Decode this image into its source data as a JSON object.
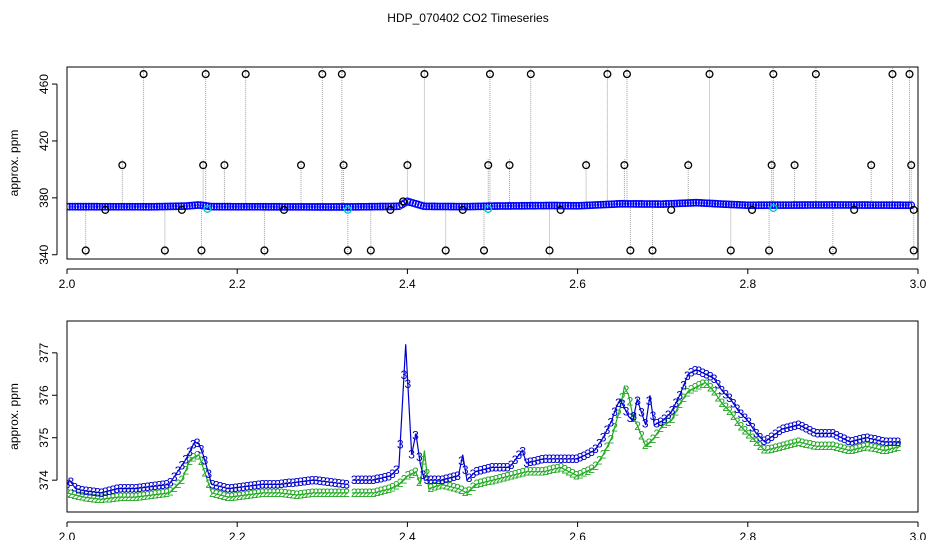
{
  "title": "HDP_070402  CO2 Timeseries",
  "colors": {
    "raw": "#000000",
    "trace": "#a0a0a0",
    "smoothed": "#0000ff",
    "flagged": "#00c8c8",
    "series2": "#22aa22",
    "series3": "#0000cc"
  },
  "chart_data": [
    {
      "type": "scatter",
      "ylabel": "approx. ppm",
      "xlim": [
        2.0,
        3.0
      ],
      "ylim": [
        337,
        472
      ],
      "x_ticks": [
        2.0,
        2.2,
        2.4,
        2.6,
        2.8,
        3.0
      ],
      "x_tick_labels": [
        "2.0",
        "2.2",
        "2.4",
        "2.6",
        "2.8",
        "3.0"
      ],
      "y_ticks": [
        340,
        380,
        420,
        460
      ],
      "y_tick_labels": [
        "340",
        "380",
        "420",
        "460"
      ],
      "baseline": [
        [
          2.0,
          373.8
        ],
        [
          2.1,
          373.7
        ],
        [
          2.14,
          374.2
        ],
        [
          2.155,
          375.0
        ],
        [
          2.17,
          373.8
        ],
        [
          2.3,
          373.6
        ],
        [
          2.33,
          373.6
        ],
        [
          2.39,
          374.0
        ],
        [
          2.4,
          377.5
        ],
        [
          2.42,
          374.0
        ],
        [
          2.47,
          373.8
        ],
        [
          2.5,
          374.2
        ],
        [
          2.57,
          374.6
        ],
        [
          2.6,
          374.4
        ],
        [
          2.65,
          375.8
        ],
        [
          2.7,
          375.6
        ],
        [
          2.74,
          376.6
        ],
        [
          2.77,
          375.6
        ],
        [
          2.8,
          374.8
        ],
        [
          2.9,
          375.0
        ],
        [
          2.99,
          374.8
        ]
      ],
      "flagged_x": [
        2.165,
        2.495,
        2.83,
        2.33
      ],
      "spikes": [
        {
          "x": 2.022,
          "y": 343
        },
        {
          "x": 2.065,
          "y": 403
        },
        {
          "x": 2.09,
          "y": 467
        },
        {
          "x": 2.115,
          "y": 343
        },
        {
          "x": 2.158,
          "y": 343
        },
        {
          "x": 2.16,
          "y": 403
        },
        {
          "x": 2.163,
          "y": 467
        },
        {
          "x": 2.185,
          "y": 403
        },
        {
          "x": 2.21,
          "y": 467
        },
        {
          "x": 2.232,
          "y": 343
        },
        {
          "x": 2.275,
          "y": 403
        },
        {
          "x": 2.3,
          "y": 467
        },
        {
          "x": 2.323,
          "y": 467
        },
        {
          "x": 2.325,
          "y": 403
        },
        {
          "x": 2.33,
          "y": 343
        },
        {
          "x": 2.357,
          "y": 343
        },
        {
          "x": 2.4,
          "y": 403
        },
        {
          "x": 2.42,
          "y": 467
        },
        {
          "x": 2.445,
          "y": 343
        },
        {
          "x": 2.49,
          "y": 343
        },
        {
          "x": 2.495,
          "y": 403
        },
        {
          "x": 2.497,
          "y": 467
        },
        {
          "x": 2.52,
          "y": 403
        },
        {
          "x": 2.545,
          "y": 467
        },
        {
          "x": 2.567,
          "y": 343
        },
        {
          "x": 2.61,
          "y": 403
        },
        {
          "x": 2.635,
          "y": 467
        },
        {
          "x": 2.655,
          "y": 403
        },
        {
          "x": 2.658,
          "y": 467
        },
        {
          "x": 2.662,
          "y": 343
        },
        {
          "x": 2.688,
          "y": 343
        },
        {
          "x": 2.73,
          "y": 403
        },
        {
          "x": 2.755,
          "y": 467
        },
        {
          "x": 2.78,
          "y": 343
        },
        {
          "x": 2.825,
          "y": 343
        },
        {
          "x": 2.828,
          "y": 403
        },
        {
          "x": 2.83,
          "y": 467
        },
        {
          "x": 2.855,
          "y": 403
        },
        {
          "x": 2.88,
          "y": 467
        },
        {
          "x": 2.9,
          "y": 343
        },
        {
          "x": 2.945,
          "y": 403
        },
        {
          "x": 2.97,
          "y": 467
        },
        {
          "x": 2.99,
          "y": 467
        },
        {
          "x": 2.992,
          "y": 403
        },
        {
          "x": 2.995,
          "y": 343
        }
      ],
      "low_points": [
        {
          "x": 2.045,
          "y": 371.5
        },
        {
          "x": 2.135,
          "y": 371.5
        },
        {
          "x": 2.255,
          "y": 371.5
        },
        {
          "x": 2.38,
          "y": 371.5
        },
        {
          "x": 2.395,
          "y": 377.5
        },
        {
          "x": 2.465,
          "y": 371.5
        },
        {
          "x": 2.58,
          "y": 371.5
        },
        {
          "x": 2.71,
          "y": 371.5
        },
        {
          "x": 2.805,
          "y": 371.5
        },
        {
          "x": 2.925,
          "y": 371.5
        },
        {
          "x": 2.995,
          "y": 371.5
        }
      ]
    },
    {
      "type": "line",
      "ylabel": "approx. ppm",
      "xlim": [
        2.0,
        3.0
      ],
      "ylim": [
        373.25,
        377.75
      ],
      "x_ticks": [
        2.0,
        2.2,
        2.4,
        2.6,
        2.8,
        3.0
      ],
      "x_tick_labels": [
        "2.0",
        "2.2",
        "2.4",
        "2.6",
        "2.8",
        "3.0"
      ],
      "y_ticks": [
        374,
        375,
        376,
        377
      ],
      "y_tick_labels": [
        "374",
        "375",
        "376",
        "377"
      ],
      "series": [
        {
          "name": "2",
          "marker": "2",
          "points": [
            [
              2.0,
              373.7
            ],
            [
              2.02,
              373.6
            ],
            [
              2.04,
              373.55
            ],
            [
              2.06,
              373.6
            ],
            [
              2.08,
              373.6
            ],
            [
              2.1,
              373.65
            ],
            [
              2.12,
              373.7
            ],
            [
              2.135,
              374.0
            ],
            [
              2.145,
              374.5
            ],
            [
              2.155,
              374.6
            ],
            [
              2.165,
              374.0
            ],
            [
              2.17,
              373.7
            ],
            [
              2.19,
              373.6
            ],
            [
              2.21,
              373.65
            ],
            [
              2.23,
              373.7
            ],
            [
              2.25,
              373.7
            ],
            [
              2.27,
              373.65
            ],
            [
              2.29,
              373.7
            ],
            [
              2.31,
              373.7
            ],
            [
              2.33,
              373.7
            ],
            null,
            [
              2.335,
              373.7
            ],
            [
              2.36,
              373.7
            ],
            [
              2.38,
              373.8
            ],
            [
              2.39,
              373.9
            ],
            [
              2.4,
              374.1
            ],
            [
              2.41,
              374.2
            ],
            [
              2.415,
              373.9
            ],
            [
              2.42,
              374.7
            ],
            [
              2.425,
              373.8
            ],
            [
              2.44,
              373.9
            ],
            [
              2.46,
              373.8
            ],
            [
              2.47,
              373.7
            ],
            [
              2.48,
              373.9
            ],
            [
              2.5,
              374.0
            ],
            [
              2.52,
              374.1
            ],
            [
              2.54,
              374.2
            ],
            [
              2.56,
              374.2
            ],
            [
              2.58,
              374.3
            ],
            [
              2.6,
              374.1
            ],
            [
              2.62,
              374.3
            ],
            [
              2.63,
              374.6
            ],
            [
              2.64,
              375.0
            ],
            [
              2.65,
              375.7
            ],
            [
              2.655,
              376.2
            ],
            [
              2.66,
              376.0
            ],
            [
              2.665,
              375.5
            ],
            [
              2.67,
              375.3
            ],
            [
              2.68,
              374.8
            ],
            [
              2.69,
              375.0
            ],
            [
              2.7,
              375.3
            ],
            [
              2.71,
              375.4
            ],
            [
              2.72,
              375.8
            ],
            [
              2.73,
              376.1
            ],
            [
              2.74,
              376.2
            ],
            [
              2.75,
              376.3
            ],
            [
              2.76,
              376.1
            ],
            [
              2.77,
              375.8
            ],
            [
              2.78,
              375.6
            ],
            [
              2.79,
              375.3
            ],
            [
              2.8,
              375.1
            ],
            [
              2.81,
              374.9
            ],
            [
              2.82,
              374.7
            ],
            [
              2.84,
              374.8
            ],
            [
              2.86,
              374.9
            ],
            [
              2.88,
              374.8
            ],
            [
              2.9,
              374.8
            ],
            [
              2.92,
              374.7
            ],
            [
              2.94,
              374.8
            ],
            [
              2.96,
              374.7
            ],
            [
              2.98,
              374.8
            ]
          ]
        },
        {
          "name": "3",
          "marker": "3",
          "points": [
            [
              2.0,
              373.9
            ],
            [
              2.003,
              374.0
            ],
            [
              2.01,
              373.8
            ],
            [
              2.02,
              373.75
            ],
            [
              2.04,
              373.7
            ],
            [
              2.06,
              373.8
            ],
            [
              2.08,
              373.8
            ],
            [
              2.1,
              373.85
            ],
            [
              2.12,
              373.9
            ],
            [
              2.13,
              374.2
            ],
            [
              2.14,
              374.5
            ],
            [
              2.15,
              374.9
            ],
            [
              2.155,
              374.85
            ],
            [
              2.16,
              374.6
            ],
            [
              2.17,
              373.9
            ],
            [
              2.19,
              373.8
            ],
            [
              2.21,
              373.85
            ],
            [
              2.23,
              373.9
            ],
            [
              2.25,
              373.9
            ],
            [
              2.27,
              373.95
            ],
            [
              2.29,
              374.0
            ],
            [
              2.31,
              373.95
            ],
            [
              2.33,
              373.9
            ],
            null,
            [
              2.335,
              374.0
            ],
            [
              2.36,
              374.0
            ],
            [
              2.38,
              374.1
            ],
            [
              2.39,
              374.3
            ],
            [
              2.398,
              377.2
            ],
            [
              2.405,
              374.6
            ],
            [
              2.41,
              375.1
            ],
            [
              2.415,
              374.4
            ],
            [
              2.42,
              374.0
            ],
            [
              2.44,
              374.0
            ],
            [
              2.46,
              374.1
            ],
            [
              2.465,
              374.6
            ],
            [
              2.47,
              374.0
            ],
            [
              2.48,
              374.2
            ],
            [
              2.5,
              374.3
            ],
            [
              2.52,
              374.3
            ],
            [
              2.535,
              374.7
            ],
            [
              2.54,
              374.4
            ],
            [
              2.56,
              374.5
            ],
            [
              2.58,
              374.5
            ],
            [
              2.6,
              374.5
            ],
            [
              2.62,
              374.7
            ],
            [
              2.63,
              375.0
            ],
            [
              2.64,
              375.4
            ],
            [
              2.645,
              375.7
            ],
            [
              2.65,
              375.9
            ],
            [
              2.655,
              375.7
            ],
            [
              2.66,
              375.5
            ],
            [
              2.665,
              375.4
            ],
            [
              2.67,
              375.9
            ],
            [
              2.675,
              375.6
            ],
            [
              2.68,
              375.3
            ],
            [
              2.685,
              376.0
            ],
            [
              2.69,
              375.3
            ],
            [
              2.7,
              375.4
            ],
            [
              2.71,
              375.6
            ],
            [
              2.72,
              376.0
            ],
            [
              2.73,
              376.5
            ],
            [
              2.74,
              376.6
            ],
            [
              2.75,
              376.5
            ],
            [
              2.76,
              376.4
            ],
            [
              2.77,
              376.1
            ],
            [
              2.78,
              375.9
            ],
            [
              2.79,
              375.6
            ],
            [
              2.8,
              375.4
            ],
            [
              2.81,
              375.1
            ],
            [
              2.82,
              374.9
            ],
            [
              2.84,
              375.2
            ],
            [
              2.86,
              375.3
            ],
            [
              2.88,
              375.1
            ],
            [
              2.9,
              375.1
            ],
            [
              2.92,
              374.9
            ],
            [
              2.94,
              375.0
            ],
            [
              2.96,
              374.9
            ],
            [
              2.98,
              374.9
            ]
          ]
        }
      ]
    }
  ]
}
